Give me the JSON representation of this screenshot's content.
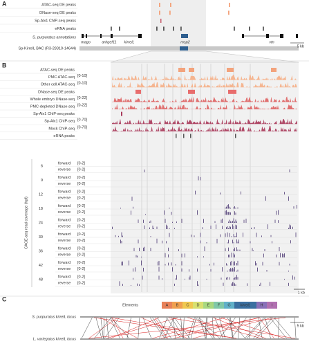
{
  "panel_a": {
    "label": "A",
    "tracks": [
      "ATAC-seq DE peaks",
      "DNase-seq DE peaks",
      "Sp-Alx1 ChIP-seq peaks",
      "eRNA peaks"
    ],
    "annotation_label": "S. purpuratus annotations",
    "genes": [
      "mago",
      "arhgef11",
      "kirrelL",
      "msp2",
      "vtn"
    ],
    "bac_label": "Sp-KirrelL BAC (R3-28310-14644)",
    "scale": "5 kb"
  },
  "panel_b": {
    "label": "B",
    "tracks": [
      {
        "name": "ATAC-seq DE peaks"
      },
      {
        "name": "PMC ATAC-seq",
        "range": "[0-10]"
      },
      {
        "name": "Other cell ATAC-seq",
        "range": "[0-10]"
      },
      {
        "name": "DNase-seq DE peaks"
      },
      {
        "name": "Whole embryo DNase-seq",
        "range": "[0-22]"
      },
      {
        "name": "PMC-depleted DNase-seq",
        "range": "[0-22]"
      },
      {
        "name": "Sp-Alx1 ChIP-seq peaks"
      },
      {
        "name": "Sp-Alx1 ChIP-seq",
        "range": "[0-70]"
      },
      {
        "name": "Mock ChIP-seq",
        "range": "[0-70]"
      },
      {
        "name": "eRNA peaks"
      }
    ],
    "cage_axis_label": "CAGE-seq read coverage (hpf)",
    "cage_times": [
      "6",
      "9",
      "12",
      "18",
      "24",
      "30",
      "36",
      "42",
      "48"
    ],
    "strands": [
      "forward",
      "reverse"
    ],
    "cage_range": "[0-2]",
    "scale": "1 kb"
  },
  "panel_c": {
    "label": "C",
    "elements_label": "Elements",
    "elements": [
      "A",
      "B",
      "C",
      "D",
      "E",
      "F",
      "G",
      "kirrelL",
      "H",
      "I"
    ],
    "loci": [
      "S. purpuratus kirrelL locus",
      "L. variegatus kirrelL locus"
    ],
    "scale": "5 kb"
  }
}
